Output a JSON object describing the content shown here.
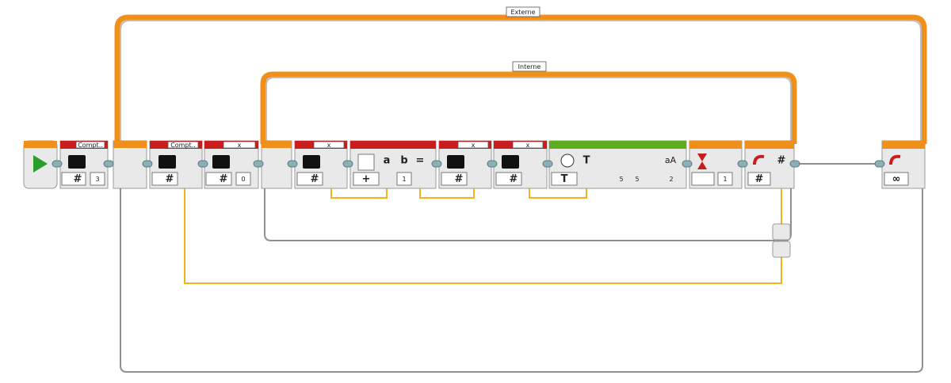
{
  "loops": [
    {
      "label": "Externe"
    },
    {
      "label": "Interne"
    }
  ],
  "blocks": [
    {
      "label": "Compt..",
      "mode": "#",
      "value": 3
    },
    {
      "label": "Compt..",
      "mode": "#"
    },
    {
      "label": "x",
      "mode": "#",
      "value": 0
    },
    {
      "label": "x",
      "mode": "#"
    },
    {
      "inputs": [
        "a",
        "b"
      ],
      "op": "=",
      "mode": "+",
      "value": 1
    },
    {
      "label": "x",
      "mode": "#"
    },
    {
      "label": "x",
      "mode": "#"
    },
    {
      "icons": [
        "T",
        "aA"
      ],
      "values": [
        5,
        5,
        2
      ]
    },
    {
      "value": 1
    },
    {
      "mode": "#"
    },
    {
      "mode": "∞"
    }
  ]
}
